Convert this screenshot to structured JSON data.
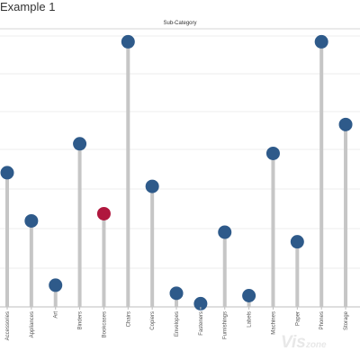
{
  "chart_data": {
    "type": "lollipop",
    "title": "Example 1",
    "subtitle": "Sub-Category",
    "categories": [
      "Accessories",
      "Appliances",
      "Art",
      "Binders",
      "Bookcases",
      "Chairs",
      "Copiers",
      "Envelopes",
      "Fasteners",
      "Furnishings",
      "Labels",
      "Machines",
      "Paper",
      "Phones",
      "Storage"
    ],
    "values": [
      167,
      107,
      27,
      203,
      116,
      330,
      150,
      17,
      4,
      93,
      14,
      191,
      81,
      330,
      227
    ],
    "highlight_index": 4,
    "ylim": [
      0,
      345
    ],
    "grid": true,
    "colors": {
      "dot": "#2e5a8a",
      "highlight": "#b0173e",
      "stem": "#c6c6c6",
      "grid": "#ececec"
    }
  },
  "watermark": {
    "main": "Vis",
    "suffix": "zone"
  }
}
